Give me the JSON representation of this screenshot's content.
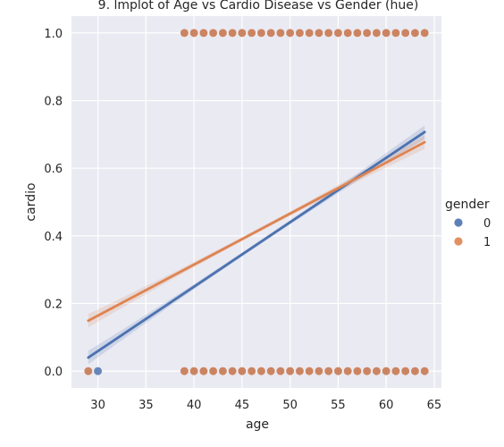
{
  "chart_data": {
    "type": "scatter",
    "title": "9. lmplot of Age vs Cardio Disease vs Gender (hue)",
    "xlabel": "age",
    "ylabel": "cardio",
    "xlim": [
      27.25,
      65.75
    ],
    "ylim": [
      -0.05,
      1.05
    ],
    "xticks": [
      30,
      35,
      40,
      45,
      50,
      55,
      60,
      65
    ],
    "yticks": [
      0.0,
      0.2,
      0.4,
      0.6,
      0.8,
      1.0
    ],
    "grid": true,
    "legend": {
      "title": "gender",
      "placement": "right"
    },
    "colors": {
      "background": "#eaeaf2",
      "grid": "#ffffff",
      "gender_0": "#4c72b0",
      "gender_1": "#dd8452"
    },
    "series": [
      {
        "name": "0",
        "color": "#4c72b0",
        "points": [
          [
            29,
            0
          ],
          [
            30,
            0
          ],
          [
            39,
            0
          ],
          [
            40,
            0
          ],
          [
            41,
            0
          ],
          [
            42,
            0
          ],
          [
            43,
            0
          ],
          [
            44,
            0
          ],
          [
            45,
            0
          ],
          [
            46,
            0
          ],
          [
            47,
            0
          ],
          [
            48,
            0
          ],
          [
            49,
            0
          ],
          [
            50,
            0
          ],
          [
            51,
            0
          ],
          [
            52,
            0
          ],
          [
            53,
            0
          ],
          [
            54,
            0
          ],
          [
            55,
            0
          ],
          [
            56,
            0
          ],
          [
            57,
            0
          ],
          [
            58,
            0
          ],
          [
            59,
            0
          ],
          [
            60,
            0
          ],
          [
            61,
            0
          ],
          [
            62,
            0
          ],
          [
            63,
            0
          ],
          [
            64,
            0
          ],
          [
            39,
            1
          ],
          [
            40,
            1
          ],
          [
            41,
            1
          ],
          [
            42,
            1
          ],
          [
            43,
            1
          ],
          [
            44,
            1
          ],
          [
            45,
            1
          ],
          [
            46,
            1
          ],
          [
            47,
            1
          ],
          [
            48,
            1
          ],
          [
            49,
            1
          ],
          [
            50,
            1
          ],
          [
            51,
            1
          ],
          [
            52,
            1
          ],
          [
            53,
            1
          ],
          [
            54,
            1
          ],
          [
            55,
            1
          ],
          [
            56,
            1
          ],
          [
            57,
            1
          ],
          [
            58,
            1
          ],
          [
            59,
            1
          ],
          [
            60,
            1
          ],
          [
            61,
            1
          ],
          [
            62,
            1
          ],
          [
            63,
            1
          ],
          [
            64,
            1
          ]
        ],
        "regression": {
          "x": [
            29,
            64
          ],
          "y": [
            0.04,
            0.707
          ]
        }
      },
      {
        "name": "1",
        "color": "#dd8452",
        "points": [
          [
            29,
            0
          ],
          [
            39,
            0
          ],
          [
            40,
            0
          ],
          [
            41,
            0
          ],
          [
            42,
            0
          ],
          [
            43,
            0
          ],
          [
            44,
            0
          ],
          [
            45,
            0
          ],
          [
            46,
            0
          ],
          [
            47,
            0
          ],
          [
            48,
            0
          ],
          [
            49,
            0
          ],
          [
            50,
            0
          ],
          [
            51,
            0
          ],
          [
            52,
            0
          ],
          [
            53,
            0
          ],
          [
            54,
            0
          ],
          [
            55,
            0
          ],
          [
            56,
            0
          ],
          [
            57,
            0
          ],
          [
            58,
            0
          ],
          [
            59,
            0
          ],
          [
            60,
            0
          ],
          [
            61,
            0
          ],
          [
            62,
            0
          ],
          [
            63,
            0
          ],
          [
            64,
            0
          ],
          [
            39,
            1
          ],
          [
            40,
            1
          ],
          [
            41,
            1
          ],
          [
            42,
            1
          ],
          [
            43,
            1
          ],
          [
            44,
            1
          ],
          [
            45,
            1
          ],
          [
            46,
            1
          ],
          [
            47,
            1
          ],
          [
            48,
            1
          ],
          [
            49,
            1
          ],
          [
            50,
            1
          ],
          [
            51,
            1
          ],
          [
            52,
            1
          ],
          [
            53,
            1
          ],
          [
            54,
            1
          ],
          [
            55,
            1
          ],
          [
            56,
            1
          ],
          [
            57,
            1
          ],
          [
            58,
            1
          ],
          [
            59,
            1
          ],
          [
            60,
            1
          ],
          [
            61,
            1
          ],
          [
            62,
            1
          ],
          [
            63,
            1
          ],
          [
            64,
            1
          ]
        ],
        "regression": {
          "x": [
            29,
            64
          ],
          "y": [
            0.149,
            0.677
          ]
        }
      }
    ]
  }
}
